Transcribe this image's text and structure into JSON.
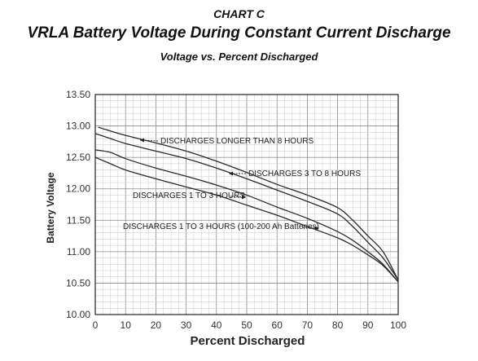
{
  "header": {
    "kicker": "CHART C",
    "title": "VRLA Battery Voltage During Constant Current Discharge",
    "subtitle": "Voltage vs. Percent Discharged"
  },
  "chart_data": {
    "type": "line",
    "title": "VRLA Battery Voltage During Constant Current Discharge",
    "subtitle": "Voltage vs. Percent Discharged",
    "xlabel": "Percent Discharged",
    "ylabel": "Battery Voltage",
    "xlim": [
      0,
      100
    ],
    "ylim": [
      10.0,
      13.5
    ],
    "grid": true,
    "x_ticks": [
      0,
      10,
      20,
      30,
      40,
      50,
      60,
      70,
      80,
      90,
      100
    ],
    "y_ticks": [
      "10.00",
      "10.50",
      "11.00",
      "11.50",
      "12.00",
      "12.50",
      "13.00",
      "13.50"
    ],
    "series": [
      {
        "name": "DISCHARGES LONGER THAN 8 HOURS",
        "x": [
          1,
          5,
          10,
          20,
          30,
          40,
          50,
          60,
          70,
          80,
          85,
          90,
          95,
          100
        ],
        "y": [
          12.98,
          12.92,
          12.85,
          12.73,
          12.6,
          12.44,
          12.26,
          12.07,
          11.9,
          11.7,
          11.5,
          11.25,
          11.0,
          10.55
        ]
      },
      {
        "name": "DISCHARGES 3 TO 8 HOURS",
        "x": [
          0,
          5,
          10,
          20,
          30,
          40,
          50,
          60,
          70,
          80,
          85,
          90,
          95,
          100
        ],
        "y": [
          12.88,
          12.8,
          12.72,
          12.6,
          12.48,
          12.33,
          12.16,
          11.98,
          11.8,
          11.6,
          11.4,
          11.15,
          10.9,
          10.55
        ]
      },
      {
        "name": "DISCHARGES 1 TO 3 HOURS",
        "x": [
          0,
          5,
          10,
          20,
          30,
          40,
          50,
          60,
          70,
          80,
          85,
          90,
          95,
          100
        ],
        "y": [
          12.62,
          12.58,
          12.48,
          12.33,
          12.2,
          12.06,
          11.9,
          11.71,
          11.53,
          11.32,
          11.18,
          11.0,
          10.8,
          10.52
        ]
      },
      {
        "name": "DISCHARGES 1 TO 3 HOURS (100-200 Ah Batteries)",
        "x": [
          0,
          5,
          10,
          20,
          30,
          40,
          50,
          60,
          70,
          80,
          85,
          90,
          95,
          100
        ],
        "y": [
          12.5,
          12.4,
          12.3,
          12.16,
          12.03,
          11.9,
          11.74,
          11.58,
          11.4,
          11.22,
          11.1,
          10.95,
          10.78,
          10.52
        ]
      }
    ],
    "annotations": [
      {
        "text": "DISCHARGES LONGER THAN 8 HOURS",
        "series": 0,
        "arrow": "left"
      },
      {
        "text": "DISCHARGES 3 TO 8 HOURS",
        "series": 1,
        "arrow": "left"
      },
      {
        "text": "DISCHARGES 1 TO 3 HOURS",
        "series": 2,
        "arrow": "right"
      },
      {
        "text": "DISCHARGES 1 TO 3 HOURS (100-200 Ah Batteries)",
        "series": 3,
        "arrow": "right"
      }
    ]
  }
}
